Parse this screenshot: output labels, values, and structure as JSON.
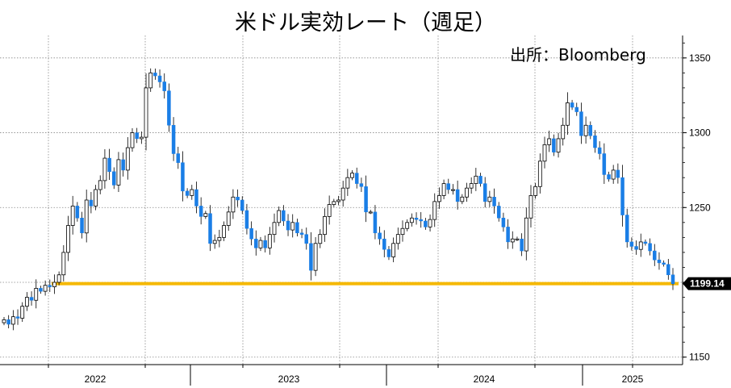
{
  "title": "米ドル実効レート（週足）",
  "source": "出所：Bloomberg",
  "chart_data": {
    "type": "candlestick",
    "frequency": "weekly",
    "y_axis_position": "right",
    "ylim": [
      1145,
      1365
    ],
    "y_ticks": [
      1150,
      1200,
      1250,
      1300,
      1350
    ],
    "y_tick_labels": [
      "1150",
      "1250",
      "1300",
      "1350"
    ],
    "x_labels": [
      "2022",
      "2023",
      "2024",
      "2025"
    ],
    "grid": true,
    "last_value": 1199.14,
    "last_value_label": "1199.14",
    "reference_line": 1199.14,
    "colors": {
      "up": "#ffffff",
      "down": "#1a7ee6",
      "wick": "#000000",
      "reference_line": "#f5b800",
      "grid": "#888888"
    },
    "close": [
      1175,
      1172,
      1177,
      1176,
      1184,
      1190,
      1188,
      1196,
      1194,
      1198,
      1197,
      1200,
      1205,
      1220,
      1238,
      1251,
      1243,
      1233,
      1255,
      1251,
      1262,
      1268,
      1283,
      1274,
      1265,
      1282,
      1275,
      1290,
      1300,
      1296,
      1297,
      1330,
      1340,
      1338,
      1334,
      1328,
      1305,
      1286,
      1280,
      1261,
      1258,
      1262,
      1251,
      1244,
      1246,
      1226,
      1228,
      1230,
      1238,
      1247,
      1257,
      1255,
      1248,
      1236,
      1229,
      1223,
      1228,
      1223,
      1232,
      1240,
      1248,
      1241,
      1235,
      1240,
      1233,
      1232,
      1226,
      1208,
      1226,
      1232,
      1244,
      1252,
      1254,
      1255,
      1263,
      1270,
      1273,
      1266,
      1264,
      1247,
      1247,
      1233,
      1229,
      1222,
      1217,
      1226,
      1232,
      1236,
      1240,
      1243,
      1242,
      1241,
      1237,
      1242,
      1254,
      1258,
      1266,
      1262,
      1262,
      1254,
      1257,
      1263,
      1266,
      1271,
      1266,
      1254,
      1257,
      1251,
      1243,
      1237,
      1227,
      1229,
      1229,
      1221,
      1243,
      1258,
      1264,
      1281,
      1292,
      1296,
      1287,
      1296,
      1305,
      1320,
      1317,
      1314,
      1298,
      1305,
      1298,
      1290,
      1286,
      1272,
      1269,
      1275,
      1270,
      1245,
      1227,
      1224,
      1222,
      1227,
      1226,
      1221,
      1215,
      1213,
      1212,
      1205,
      1199
    ]
  }
}
